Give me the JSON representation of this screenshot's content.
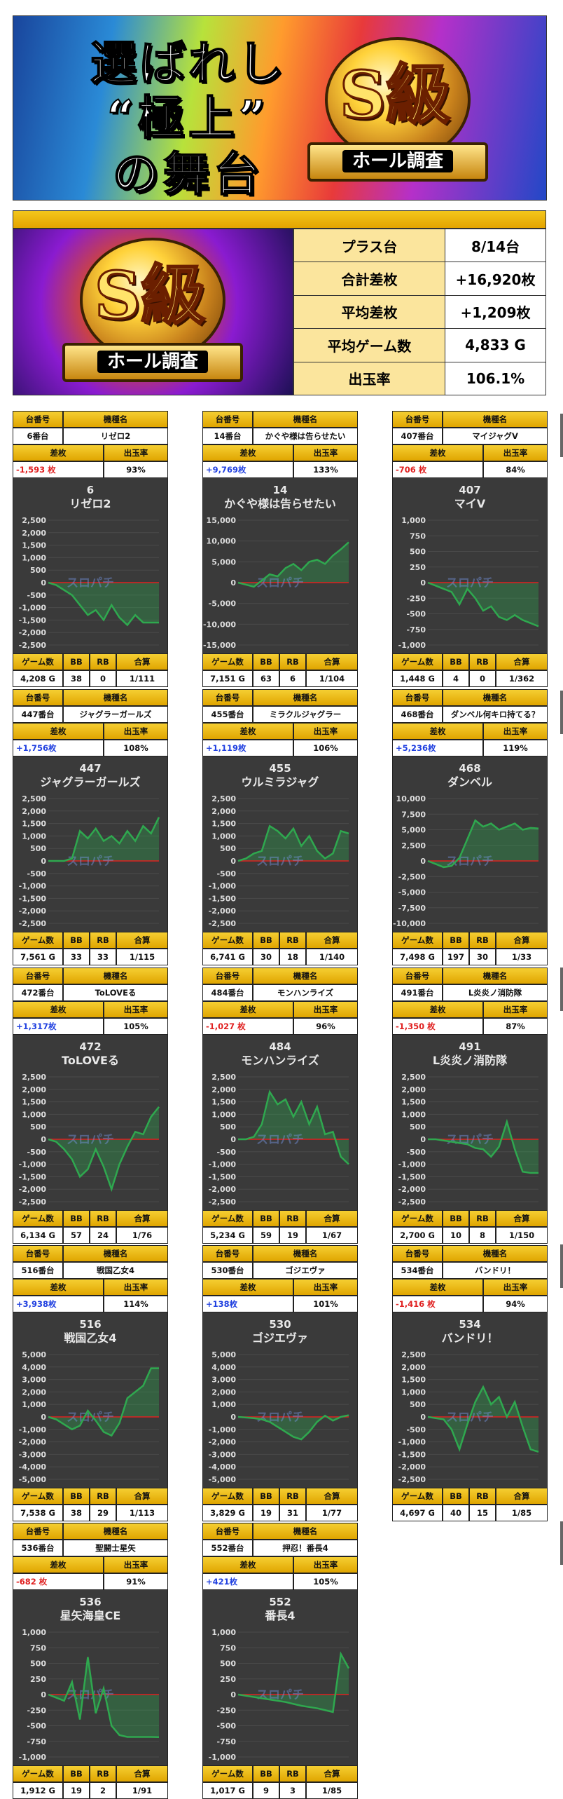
{
  "banner": {
    "line1": "選ばれし",
    "line2": "“極上”",
    "line3": "の舞台",
    "emblem_text": "S級",
    "ribbon_text": "ホール調査"
  },
  "summary": {
    "emblem_text": "S級",
    "ribbon_text": "ホール調査",
    "rows": [
      {
        "label": "プラス台",
        "value": "8/14台"
      },
      {
        "label": "合計差枚",
        "value": "+16,920枚"
      },
      {
        "label": "平均差枚",
        "value": "+1,209枚"
      },
      {
        "label": "平均ゲーム数",
        "value": "4,833 G"
      },
      {
        "label": "出玉率",
        "value": "106.1%"
      }
    ]
  },
  "headers": {
    "number": "台番号",
    "machine": "機種名",
    "diff": "差枚",
    "rate": "出玉率",
    "games": "ゲーム数",
    "bb": "BB",
    "rb": "RB",
    "total": "合算"
  },
  "watermark": "スロパチ",
  "colors": {
    "gold": "#e9b50d",
    "negative": "#e02020",
    "positive": "#2040e0",
    "chart_bg": "#3a3a3a",
    "line": "#2fa84f"
  },
  "machines": [
    {
      "num": "6番台",
      "name": "リゼロ2",
      "diff": "-1,593 枚",
      "sign": "neg",
      "rate": "93%",
      "chart_num": "6",
      "chart_title": "リゼロ2",
      "games": "4,208 G",
      "bb": "38",
      "rb": "0",
      "total": "1/111",
      "ticks": [
        "2,500",
        "2,000",
        "1,500",
        "1,000",
        "500",
        "0",
        "-500",
        "-1,000",
        "-1,500",
        "-2,000",
        "-2,500"
      ],
      "ymin": -2500,
      "ymax": 2500,
      "y": [
        0,
        -100,
        -300,
        -500,
        -900,
        -1300,
        -1100,
        -1500,
        -900,
        -1400,
        -1700,
        -1300,
        -1600,
        -1600,
        -1600
      ]
    },
    {
      "num": "14番台",
      "name": "かぐや様は告らせたい",
      "diff": "+9,769枚",
      "sign": "pos",
      "rate": "133%",
      "chart_num": "14",
      "chart_title": "かぐや様は告らせたい",
      "games": "7,151 G",
      "bb": "63",
      "rb": "6",
      "total": "1/104",
      "ticks": [
        "15,000",
        "10,000",
        "5,000",
        "0",
        "-5,000",
        "-10,000",
        "-15,000"
      ],
      "ymin": -15000,
      "ymax": 15000,
      "y": [
        0,
        -500,
        -1000,
        500,
        2000,
        1500,
        3500,
        4500,
        3000,
        5000,
        5500,
        4500,
        6500,
        8000,
        9700
      ]
    },
    {
      "num": "407番台",
      "name": "マイジャグV",
      "diff": "-706 枚",
      "sign": "neg",
      "rate": "84%",
      "chart_num": "407",
      "chart_title": "マイV",
      "games": "1,448 G",
      "bb": "4",
      "rb": "0",
      "total": "1/362",
      "ticks": [
        "1,000",
        "750",
        "500",
        "250",
        "0",
        "-250",
        "-500",
        "-750",
        "-1,000"
      ],
      "ymin": -1000,
      "ymax": 1000,
      "y": [
        0,
        -50,
        -100,
        -150,
        -350,
        -100,
        -250,
        -450,
        -380,
        -550,
        -600,
        -520,
        -600,
        -650,
        -700
      ]
    },
    {
      "num": "447番台",
      "name": "ジャグラーガールズ",
      "diff": "+1,756枚",
      "sign": "pos",
      "rate": "108%",
      "chart_num": "447",
      "chart_title": "ジャグラーガールズ",
      "games": "7,561 G",
      "bb": "33",
      "rb": "33",
      "total": "1/115",
      "ticks": [
        "2,500",
        "2,000",
        "1,500",
        "1,000",
        "500",
        "0",
        "-500",
        "-1,000",
        "-1,500",
        "-2,000",
        "-2,500"
      ],
      "ymin": -2500,
      "ymax": 2500,
      "y": [
        0,
        0,
        0,
        100,
        1200,
        900,
        1300,
        800,
        1000,
        700,
        1200,
        800,
        1400,
        1100,
        1750
      ]
    },
    {
      "num": "455番台",
      "name": "ミラクルジャグラー",
      "diff": "+1,119枚",
      "sign": "pos",
      "rate": "106%",
      "chart_num": "455",
      "chart_title": "ウルミラジャグ",
      "games": "6,741 G",
      "bb": "30",
      "rb": "18",
      "total": "1/140",
      "ticks": [
        "2,500",
        "2,000",
        "1,500",
        "1,000",
        "500",
        "0",
        "-500",
        "-1,000",
        "-1,500",
        "-2,000",
        "-2,500"
      ],
      "ymin": -2500,
      "ymax": 2500,
      "y": [
        0,
        100,
        300,
        400,
        1400,
        1200,
        900,
        1300,
        600,
        1000,
        400,
        100,
        300,
        1200,
        1100
      ]
    },
    {
      "num": "468番台",
      "name": "ダンベル何キロ持てる？",
      "diff": "+5,236枚",
      "sign": "pos",
      "rate": "119%",
      "chart_num": "468",
      "chart_title": "ダンベル",
      "games": "7,498 G",
      "bb": "197",
      "rb": "30",
      "total": "1/33",
      "ticks": [
        "10,000",
        "7,500",
        "5,000",
        "2,500",
        "0",
        "-2,500",
        "-5,000",
        "-7,500",
        "-10,000"
      ],
      "ymin": -10000,
      "ymax": 10000,
      "y": [
        0,
        -500,
        -1000,
        -800,
        500,
        3500,
        6500,
        5500,
        6000,
        5000,
        5500,
        6000,
        5000,
        5300,
        5200
      ]
    },
    {
      "num": "472番台",
      "name": "ToLOVEる",
      "diff": "+1,317枚",
      "sign": "pos",
      "rate": "105%",
      "chart_num": "472",
      "chart_title": "ToLOVEる",
      "games": "6,134 G",
      "bb": "57",
      "rb": "24",
      "total": "1/76",
      "ticks": [
        "2,500",
        "2,000",
        "1,500",
        "1,000",
        "500",
        "0",
        "-500",
        "-1,000",
        "-1,500",
        "-2,000",
        "-2,500"
      ],
      "ymin": -2500,
      "ymax": 2500,
      "y": [
        0,
        -100,
        -400,
        -800,
        -1500,
        -1200,
        -400,
        -1100,
        -2000,
        -1000,
        -300,
        300,
        200,
        900,
        1300
      ]
    },
    {
      "num": "484番台",
      "name": "モンハンライズ",
      "diff": "-1,027 枚",
      "sign": "neg",
      "rate": "96%",
      "chart_num": "484",
      "chart_title": "モンハンライズ",
      "games": "5,234 G",
      "bb": "59",
      "rb": "19",
      "total": "1/67",
      "ticks": [
        "2,500",
        "2,000",
        "1,500",
        "1,000",
        "500",
        "0",
        "-500",
        "-1,000",
        "-1,500",
        "-2,000",
        "-2,500"
      ],
      "ymin": -2500,
      "ymax": 2500,
      "y": [
        0,
        0,
        100,
        600,
        1900,
        1400,
        1600,
        900,
        1500,
        600,
        1300,
        200,
        300,
        -700,
        -1000
      ]
    },
    {
      "num": "491番台",
      "name": "L炎炎ノ消防隊",
      "diff": "-1,350 枚",
      "sign": "neg",
      "rate": "87%",
      "chart_num": "491",
      "chart_title": "L炎炎ノ消防隊",
      "games": "2,700 G",
      "bb": "10",
      "rb": "8",
      "total": "1/150",
      "ticks": [
        "2,500",
        "2,000",
        "1,500",
        "1,000",
        "500",
        "0",
        "-500",
        "-1,000",
        "-1,500",
        "-2,000",
        "-2,500"
      ],
      "ymin": -2500,
      "ymax": 2500,
      "y": [
        0,
        0,
        -50,
        -100,
        -150,
        -200,
        -350,
        -400,
        -700,
        -300,
        700,
        -400,
        -1300,
        -1350,
        -1350
      ]
    },
    {
      "num": "516番台",
      "name": "戦国乙女4",
      "diff": "+3,938枚",
      "sign": "pos",
      "rate": "114%",
      "chart_num": "516",
      "chart_title": "戦国乙女4",
      "games": "7,538 G",
      "bb": "38",
      "rb": "29",
      "total": "1/113",
      "ticks": [
        "5,000",
        "4,000",
        "3,000",
        "2,000",
        "1,000",
        "0",
        "-1,000",
        "-2,000",
        "-3,000",
        "-4,000",
        "-5,000"
      ],
      "ymin": -5000,
      "ymax": 5000,
      "y": [
        0,
        -200,
        -600,
        -1000,
        -700,
        500,
        -300,
        -1200,
        -1500,
        -500,
        1500,
        2000,
        2500,
        3900,
        3900
      ]
    },
    {
      "num": "530番台",
      "name": "ゴジエヴァ",
      "diff": "+138枚",
      "sign": "pos",
      "rate": "101%",
      "chart_num": "530",
      "chart_title": "ゴジエヴァ",
      "games": "3,829 G",
      "bb": "19",
      "rb": "31",
      "total": "1/77",
      "ticks": [
        "5,000",
        "4,000",
        "3,000",
        "2,000",
        "1,000",
        "0",
        "-1,000",
        "-2,000",
        "-3,000",
        "-4,000",
        "-5,000"
      ],
      "ymin": -5000,
      "ymax": 5000,
      "y": [
        0,
        -50,
        -100,
        -200,
        -400,
        -800,
        -1200,
        -1600,
        -1800,
        -1200,
        -400,
        100,
        -300,
        0,
        138
      ]
    },
    {
      "num": "534番台",
      "name": "バンドリ！",
      "diff": "-1,416 枚",
      "sign": "neg",
      "rate": "94%",
      "chart_num": "534",
      "chart_title": "バンドリ！",
      "games": "4,697 G",
      "bb": "40",
      "rb": "15",
      "total": "1/85",
      "ticks": [
        "2,500",
        "2,000",
        "1,500",
        "1,000",
        "500",
        "0",
        "-500",
        "-1,000",
        "-1,500",
        "-2,000",
        "-2,500"
      ],
      "ymin": -2500,
      "ymax": 2500,
      "y": [
        0,
        -50,
        -100,
        -500,
        -1300,
        -300,
        600,
        1200,
        500,
        800,
        0,
        600,
        -400,
        -1300,
        -1400
      ]
    },
    {
      "num": "536番台",
      "name": "聖闘士星矢",
      "diff": "-682 枚",
      "sign": "neg",
      "rate": "91%",
      "chart_num": "536",
      "chart_title": "星矢海皇CE",
      "games": "1,912 G",
      "bb": "19",
      "rb": "2",
      "total": "1/91",
      "ticks": [
        "1,000",
        "750",
        "500",
        "250",
        "0",
        "-250",
        "-500",
        "-750",
        "-1,000"
      ],
      "ymin": -1000,
      "ymax": 1000,
      "y": [
        0,
        -50,
        -100,
        200,
        -400,
        600,
        -300,
        100,
        -500,
        -650,
        -680,
        -680,
        -680,
        -680,
        -682
      ]
    },
    {
      "num": "552番台",
      "name": "押忍！番長4",
      "diff": "+421枚",
      "sign": "pos",
      "rate": "105%",
      "chart_num": "552",
      "chart_title": "番長4",
      "games": "1,017 G",
      "bb": "9",
      "rb": "3",
      "total": "1/85",
      "ticks": [
        "1,000",
        "750",
        "500",
        "250",
        "0",
        "-250",
        "-500",
        "-750",
        "-1,000"
      ],
      "ymin": -1000,
      "ymax": 1000,
      "y": [
        0,
        -20,
        -40,
        -60,
        -80,
        -100,
        -120,
        -150,
        -180,
        -200,
        -220,
        -250,
        -280,
        650,
        420
      ]
    }
  ]
}
